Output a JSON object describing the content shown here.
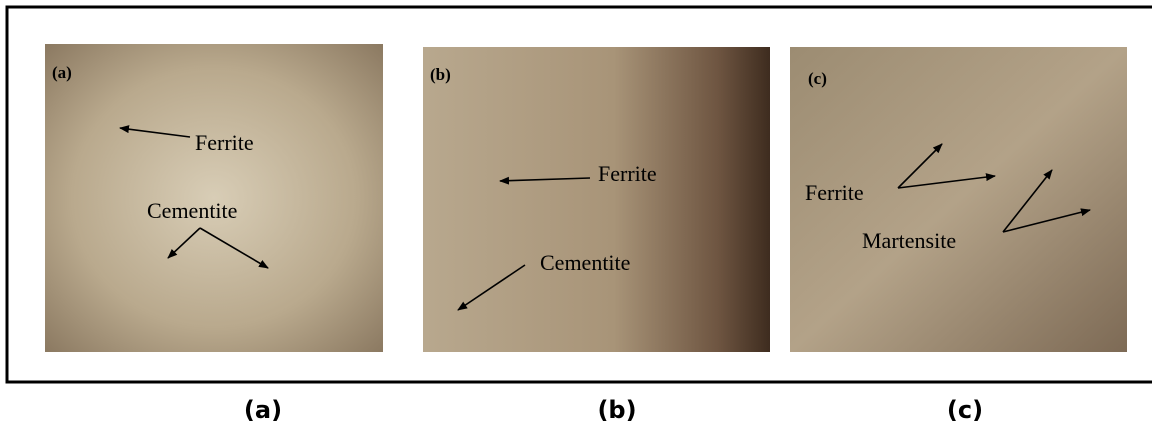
{
  "panels": [
    {
      "tag": "(a)",
      "labels": [
        "Ferrite",
        "Cementite"
      ],
      "caption": "(a)"
    },
    {
      "tag": "(b)",
      "labels": [
        "Ferrite",
        "Cementite"
      ],
      "caption": "(b)"
    },
    {
      "tag": "(c)",
      "labels": [
        "Ferrite",
        "Martensite"
      ],
      "caption": "(c)"
    }
  ]
}
